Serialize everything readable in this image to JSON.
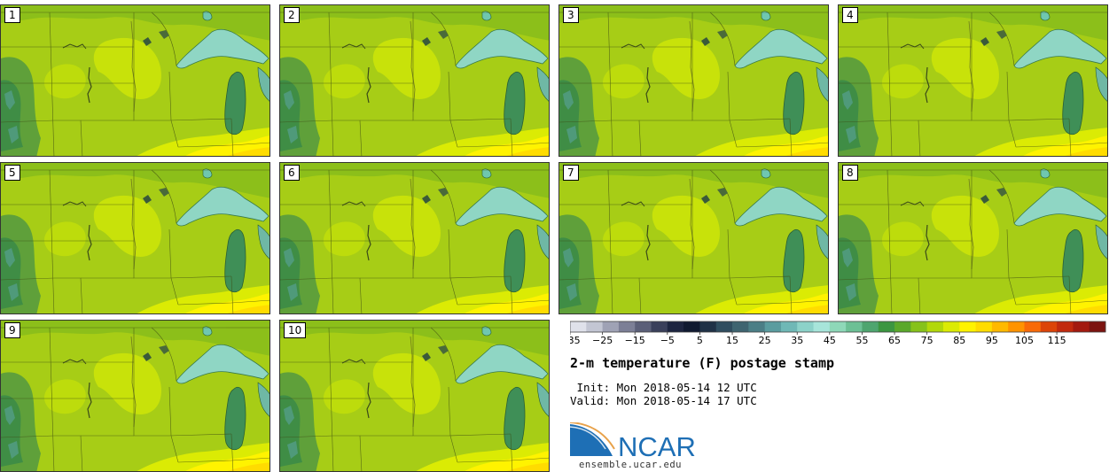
{
  "panels": [
    {
      "label": "1"
    },
    {
      "label": "2"
    },
    {
      "label": "3"
    },
    {
      "label": "4"
    },
    {
      "label": "5"
    },
    {
      "label": "6"
    },
    {
      "label": "7"
    },
    {
      "label": "8"
    },
    {
      "label": "9"
    },
    {
      "label": "10"
    }
  ],
  "colorbar": {
    "ticks": [
      "−35",
      "−25",
      "−15",
      "−5",
      "5",
      "15",
      "25",
      "35",
      "45",
      "55",
      "65",
      "75",
      "85",
      "95",
      "105",
      "115"
    ],
    "colors": [
      "#dfe1ea",
      "#c3c6d3",
      "#9fa2b5",
      "#7c7f96",
      "#5b5f78",
      "#3a405b",
      "#1d2540",
      "#101a30",
      "#1f3146",
      "#2f4d5f",
      "#3e6470",
      "#4b7e86",
      "#5a9c9f",
      "#6fb8b6",
      "#8cd2c9",
      "#a7e5da",
      "#8ed8b8",
      "#6cc095",
      "#4ea56f",
      "#3b9640",
      "#5aa82a",
      "#86c21b",
      "#b2d80a",
      "#dbeb04",
      "#fff300",
      "#ffdc00",
      "#ffb900",
      "#ff9300",
      "#f86a08",
      "#dc4408",
      "#c22a0e",
      "#a31a10",
      "#7c1310"
    ]
  },
  "legend": {
    "title": "2-m temperature (F) postage stamp",
    "init": " Init: Mon 2018-05-14 12 UTC",
    "valid": "Valid: Mon 2018-05-14 17 UTC"
  },
  "logo": {
    "text": "NCAR",
    "site": "ensemble.ucar.edu"
  }
}
